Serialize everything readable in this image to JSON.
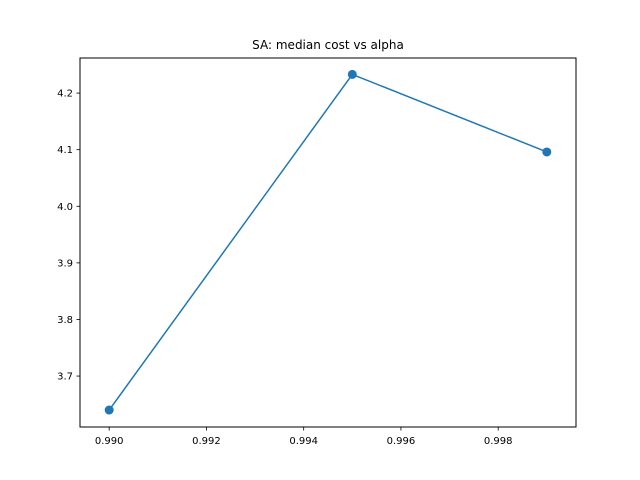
{
  "chart_data": {
    "type": "line",
    "title": "SA: median cost vs alpha",
    "xlabel": "",
    "ylabel": "",
    "x": [
      0.99,
      0.995,
      0.999
    ],
    "series": [
      {
        "values": [
          3.64,
          4.233,
          4.096
        ],
        "color": "#1f77b4",
        "marker": "circle"
      }
    ],
    "xlim": [
      0.9894,
      0.9996
    ],
    "ylim": [
      3.61,
      4.262
    ],
    "xticks": [
      0.99,
      0.992,
      0.994,
      0.996,
      0.998
    ],
    "xtick_labels": [
      "0.990",
      "0.992",
      "0.994",
      "0.996",
      "0.998"
    ],
    "yticks": [
      3.7,
      3.8,
      3.9,
      4.0,
      4.1,
      4.2
    ],
    "ytick_labels": [
      "3.7",
      "3.8",
      "3.9",
      "4.0",
      "4.1",
      "4.2"
    ],
    "grid": false,
    "legend": "none"
  }
}
